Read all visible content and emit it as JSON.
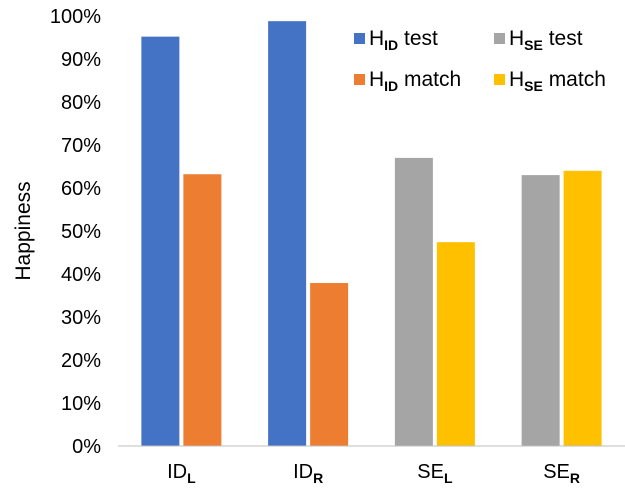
{
  "chart_data": {
    "type": "bar",
    "ylabel": "Happiness",
    "xlabel": "",
    "ylim": [
      0,
      100
    ],
    "yticks": [
      "0%",
      "10%",
      "20%",
      "30%",
      "40%",
      "50%",
      "60%",
      "70%",
      "80%",
      "90%",
      "100%"
    ],
    "grid": false,
    "legend_position": "top-right",
    "categories": [
      {
        "main": "ID",
        "sub": "L"
      },
      {
        "main": "ID",
        "sub": "R"
      },
      {
        "main": "SE",
        "sub": "L"
      },
      {
        "main": "SE",
        "sub": "R"
      }
    ],
    "bars": [
      {
        "category": 0,
        "slot": 0,
        "series": "hid_test",
        "value": 95.2
      },
      {
        "category": 0,
        "slot": 1,
        "series": "hid_match",
        "value": 63.2
      },
      {
        "category": 1,
        "slot": 0,
        "series": "hid_test",
        "value": 98.8
      },
      {
        "category": 1,
        "slot": 1,
        "series": "hid_match",
        "value": 37.9
      },
      {
        "category": 2,
        "slot": 0,
        "series": "hse_test",
        "value": 67.0
      },
      {
        "category": 2,
        "slot": 1,
        "series": "hse_match",
        "value": 47.4
      },
      {
        "category": 3,
        "slot": 0,
        "series": "hse_test",
        "value": 63.0
      },
      {
        "category": 3,
        "slot": 1,
        "series": "hse_match",
        "value": 64.0
      }
    ],
    "series": [
      {
        "key": "hid_test",
        "name_main": "H",
        "name_sub": "ID",
        "name_rest": " test",
        "color": "#4472C4"
      },
      {
        "key": "hse_test",
        "name_main": "H",
        "name_sub": "SE",
        "name_rest": " test",
        "color": "#A5A5A5"
      },
      {
        "key": "hid_match",
        "name_main": "H",
        "name_sub": "ID",
        "name_rest": " match",
        "color": "#ED7D31"
      },
      {
        "key": "hse_match",
        "name_main": "H",
        "name_sub": "SE",
        "name_rest": " match",
        "color": "#FFC000"
      }
    ]
  }
}
